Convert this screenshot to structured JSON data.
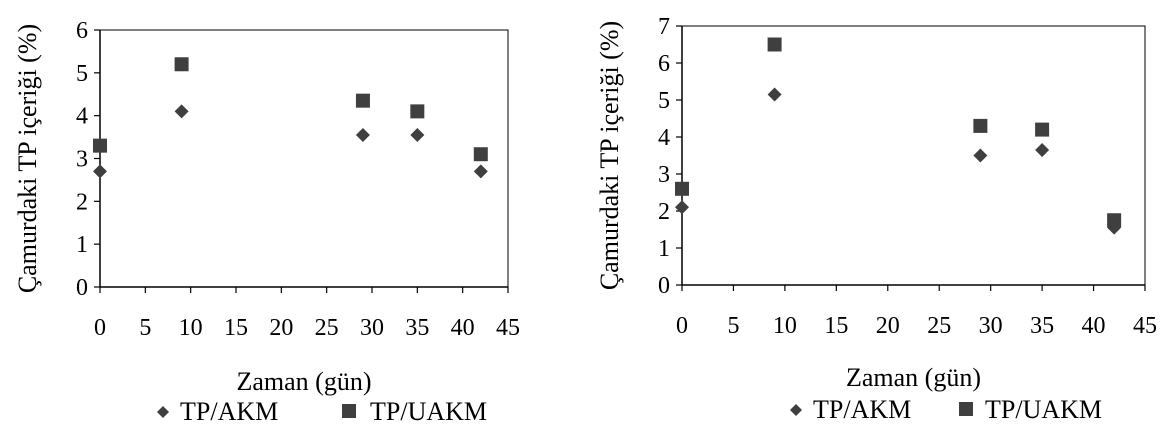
{
  "chart_data": [
    {
      "type": "scatter",
      "xlabel": "Zaman (gün)",
      "ylabel": "Çamurdaki TP içeriği  (%)",
      "xlim": [
        0,
        45
      ],
      "ylim": [
        0,
        6
      ],
      "x_ticks": [
        "0",
        "5",
        "10",
        "15",
        "20",
        "25",
        "30",
        "35",
        "40",
        "45"
      ],
      "y_ticks": [
        "0",
        "1",
        "2",
        "3",
        "4",
        "5",
        "6"
      ],
      "x": [
        0,
        9,
        29,
        35,
        42
      ],
      "series": [
        {
          "name": "TP/AKM",
          "marker": "diamond",
          "values": [
            2.7,
            4.1,
            3.55,
            3.55,
            2.7
          ]
        },
        {
          "name": "TP/UAKM",
          "marker": "square",
          "values": [
            3.3,
            5.2,
            4.35,
            4.1,
            3.1
          ]
        }
      ],
      "legend": "bottom",
      "grid": false,
      "marker_color": "#3f3f3f"
    },
    {
      "type": "scatter",
      "xlabel": "Zaman (gün)",
      "ylabel": "Çamurdaki TP içeriği  (%)",
      "xlim": [
        0,
        45
      ],
      "ylim": [
        0,
        7
      ],
      "x_ticks": [
        "0",
        "5",
        "10",
        "15",
        "20",
        "25",
        "30",
        "35",
        "40",
        "45"
      ],
      "y_ticks": [
        "0",
        "1",
        "2",
        "3",
        "4",
        "5",
        "6",
        "7"
      ],
      "x": [
        0,
        9,
        29,
        35,
        42
      ],
      "series": [
        {
          "name": "TP/AKM",
          "marker": "diamond",
          "values": [
            2.1,
            5.15,
            3.5,
            3.65,
            1.55
          ]
        },
        {
          "name": "TP/UAKM",
          "marker": "square",
          "values": [
            2.6,
            6.5,
            4.3,
            4.2,
            1.75
          ]
        }
      ],
      "legend": "bottom",
      "grid": false,
      "marker_color": "#3f3f3f"
    }
  ]
}
